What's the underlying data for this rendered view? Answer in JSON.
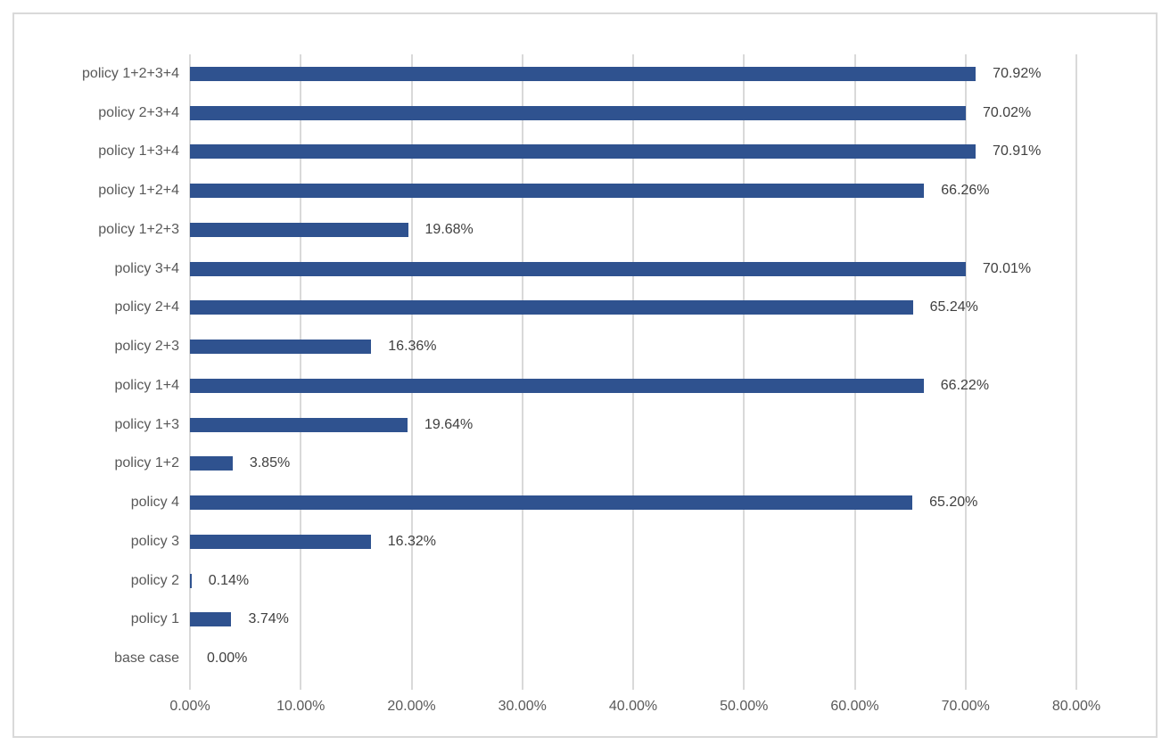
{
  "chart_data": {
    "type": "bar",
    "orientation": "horizontal",
    "title": "",
    "xlabel": "",
    "ylabel": "",
    "categories": [
      "policy 1+2+3+4",
      "policy 2+3+4",
      "policy 1+3+4",
      "policy 1+2+4",
      "policy 1+2+3",
      "policy 3+4",
      "policy 2+4",
      "policy 2+3",
      "policy 1+4",
      "policy 1+3",
      "policy 1+2",
      "policy 4",
      "policy 3",
      "policy 2",
      "policy 1",
      "base case"
    ],
    "values": [
      70.92,
      70.02,
      70.91,
      66.26,
      19.68,
      70.01,
      65.24,
      16.36,
      66.22,
      19.64,
      3.85,
      65.2,
      16.32,
      0.14,
      3.74,
      0.0
    ],
    "data_labels": [
      "70.92%",
      "70.02%",
      "70.91%",
      "66.26%",
      "19.68%",
      "70.01%",
      "65.24%",
      "16.36%",
      "66.22%",
      "19.64%",
      "3.85%",
      "65.20%",
      "16.32%",
      "0.14%",
      "3.74%",
      "0.00%"
    ],
    "x_ticks": [
      "0.00%",
      "10.00%",
      "20.00%",
      "30.00%",
      "40.00%",
      "50.00%",
      "60.00%",
      "70.00%",
      "80.00%"
    ],
    "xlim": [
      0,
      80
    ],
    "grid": true,
    "legend": false,
    "colors": {
      "bar": "#2F528F",
      "gridline": "#D9D9D9",
      "frame_border": "#D9D9D9",
      "axis_text": "#595959",
      "data_label_text": "#404040",
      "background": "#FFFFFF"
    }
  }
}
